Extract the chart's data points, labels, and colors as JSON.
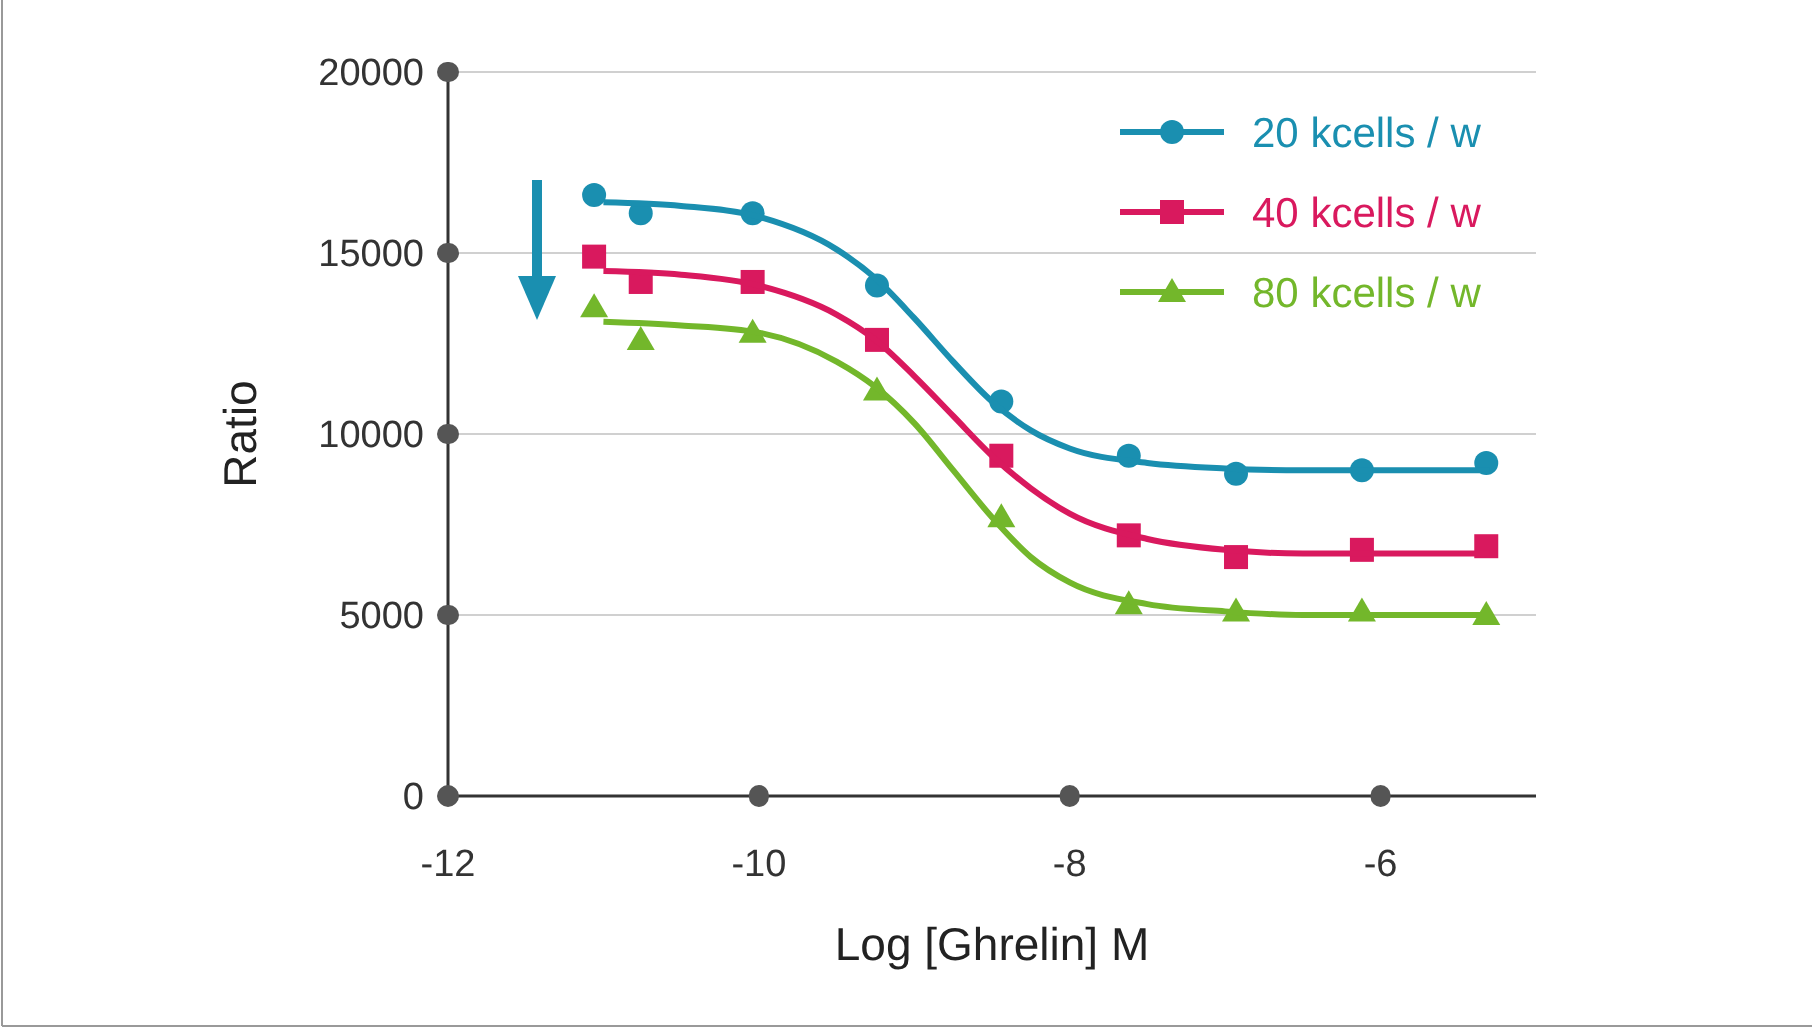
{
  "chart_data": {
    "type": "scatter",
    "xlabel": "Log [Ghrelin] M",
    "ylabel": "Ratio",
    "xlim": [
      -12,
      -5
    ],
    "xticks": [
      -12,
      -10,
      -8,
      -6
    ],
    "ylim": [
      0,
      20000
    ],
    "yticks": [
      0,
      5000,
      10000,
      15000,
      20000
    ],
    "grid": "y",
    "legend": "top right",
    "series": [
      {
        "name": "20 kcells / w",
        "color": "#1a8fb0",
        "marker": "circle",
        "x": [
          -11.06,
          -10.76,
          -10.04,
          -9.24,
          -8.44,
          -7.62,
          -6.93,
          -6.12,
          -5.32
        ],
        "values": [
          16600,
          16100,
          16100,
          14100,
          10900,
          9400,
          8900,
          9000,
          9200
        ]
      },
      {
        "name": "40 kcells / w",
        "color": "#d9195e",
        "marker": "square",
        "x": [
          -11.06,
          -10.76,
          -10.04,
          -9.24,
          -8.44,
          -7.62,
          -6.93,
          -6.12,
          -5.32
        ],
        "values": [
          14900,
          14200,
          14200,
          12600,
          9400,
          7200,
          6600,
          6800,
          6900
        ]
      },
      {
        "name": "80 kcells / w",
        "color": "#73b72b",
        "marker": "triangle",
        "x": [
          -11.06,
          -10.76,
          -10.04,
          -9.24,
          -8.44,
          -7.62,
          -6.93,
          -6.12,
          -5.32
        ],
        "values": [
          13500,
          12600,
          12800,
          11200,
          7700,
          5300,
          5100,
          5100,
          5000
        ]
      },
      {
        "type": "line",
        "color": "#1a8fb0",
        "marker": "none",
        "x": [
          -11,
          -10.5,
          -10,
          -9.5,
          -9.25,
          -9,
          -8.75,
          -8.5,
          -8.25,
          -8,
          -7.5,
          -7,
          -6.5,
          -6,
          -5.3
        ],
        "values": [
          16400,
          16300,
          16000,
          15100,
          14300,
          13200,
          12000,
          10900,
          10100,
          9600,
          9200,
          9050,
          9000,
          9000,
          9000
        ]
      },
      {
        "type": "line",
        "color": "#d9195e",
        "marker": "none",
        "x": [
          -11,
          -10.5,
          -10,
          -9.5,
          -9.25,
          -9,
          -8.75,
          -8.5,
          -8.25,
          -8,
          -7.5,
          -7,
          -6.5,
          -6,
          -5.3
        ],
        "values": [
          14500,
          14400,
          14100,
          13300,
          12600,
          11600,
          10500,
          9400,
          8500,
          7800,
          7100,
          6800,
          6700,
          6700,
          6700
        ]
      },
      {
        "type": "line",
        "color": "#73b72b",
        "marker": "none",
        "x": [
          -11,
          -10.5,
          -10,
          -9.5,
          -9.25,
          -9,
          -8.75,
          -8.5,
          -8.25,
          -8,
          -7.5,
          -7,
          -6.5,
          -6,
          -5.3
        ],
        "values": [
          13100,
          13000,
          12800,
          12000,
          11300,
          10300,
          9000,
          7700,
          6600,
          5900,
          5300,
          5100,
          5000,
          5000,
          5000
        ]
      }
    ]
  }
}
